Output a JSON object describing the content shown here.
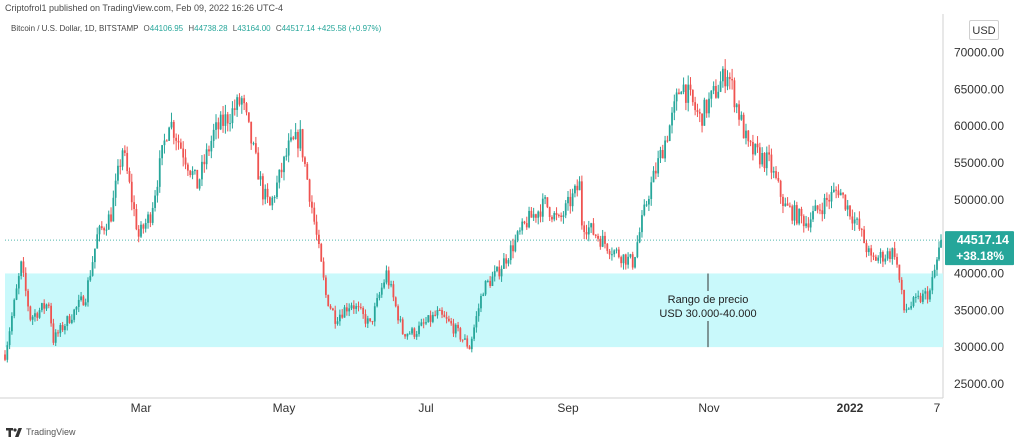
{
  "header": {
    "published_by": "Criptofrol1 published on TradingView.com, Feb 09, 2022 16:26 UTC-4"
  },
  "legend": {
    "symbol": "Bitcoin / U.S. Dollar, 1D, BITSTAMP",
    "open_label": "O",
    "open": "44106.95",
    "high_label": "H",
    "high": "44738.28",
    "low_label": "L",
    "low": "43164.00",
    "close_label": "C",
    "close": "44517.14",
    "change": "+425.58 (+0.97%)"
  },
  "axis": {
    "currency": "USD"
  },
  "annotation": {
    "line1": "Rango de precio",
    "line2": "USD 30.000-40.000"
  },
  "footer": {
    "brand": "TradingView"
  },
  "colors": {
    "up": "#26a69a",
    "down": "#ef5350",
    "zone": "#c9f9fb",
    "last_price_bg": "#26a69a",
    "axis_text": "#333333"
  },
  "chart_data": {
    "type": "candlestick",
    "x_tick_labels": [
      "Mar",
      "May",
      "Jul",
      "Sep",
      "Nov",
      "2022",
      "7"
    ],
    "y_tick_labels": [
      "25000.00",
      "30000.00",
      "35000.00",
      "40000.00",
      "45000.00",
      "50000.00",
      "55000.00",
      "60000.00",
      "65000.00",
      "70000.00"
    ],
    "ylim": [
      23500,
      72500
    ],
    "x_anchor_dates": [
      "2021-01-01",
      "2021-03-01",
      "2021-05-01",
      "2021-07-01",
      "2021-09-01",
      "2021-11-01",
      "2022-01-01",
      "2022-02-07",
      "2022-02-09"
    ],
    "price_range_zone": [
      30000,
      40000
    ],
    "last_price": "44517.14",
    "last_change": "+38.18%",
    "price_path": [
      [
        "2021-01-01",
        29000
      ],
      [
        "2021-01-08",
        41000
      ],
      [
        "2021-01-12",
        34000
      ],
      [
        "2021-01-20",
        36000
      ],
      [
        "2021-01-22",
        31000
      ],
      [
        "2021-01-29",
        34000
      ],
      [
        "2021-02-05",
        37000
      ],
      [
        "2021-02-10",
        45000
      ],
      [
        "2021-02-16",
        48000
      ],
      [
        "2021-02-21",
        57000
      ],
      [
        "2021-02-28",
        45000
      ],
      [
        "2021-03-05",
        48000
      ],
      [
        "2021-03-13",
        61000
      ],
      [
        "2021-03-25",
        52000
      ],
      [
        "2021-04-01",
        59000
      ],
      [
        "2021-04-13",
        63500
      ],
      [
        "2021-04-22",
        51000
      ],
      [
        "2021-04-25",
        49000
      ],
      [
        "2021-05-03",
        57000
      ],
      [
        "2021-05-08",
        58500
      ],
      [
        "2021-05-13",
        49000
      ],
      [
        "2021-05-19",
        37000
      ],
      [
        "2021-05-23",
        34000
      ],
      [
        "2021-05-30",
        36000
      ],
      [
        "2021-06-07",
        33000
      ],
      [
        "2021-06-14",
        40000
      ],
      [
        "2021-06-21",
        32000
      ],
      [
        "2021-06-26",
        32000
      ],
      [
        "2021-07-06",
        34500
      ],
      [
        "2021-07-12",
        33000
      ],
      [
        "2021-07-20",
        30000
      ],
      [
        "2021-07-26",
        38000
      ],
      [
        "2021-08-01",
        40000
      ],
      [
        "2021-08-14",
        47000
      ],
      [
        "2021-08-22",
        49500
      ],
      [
        "2021-08-28",
        47000
      ],
      [
        "2021-09-06",
        52000
      ],
      [
        "2021-09-07",
        47000
      ],
      [
        "2021-09-21",
        43000
      ],
      [
        "2021-09-29",
        41500
      ],
      [
        "2021-10-06",
        51000
      ],
      [
        "2021-10-16",
        61000
      ],
      [
        "2021-10-20",
        66000
      ],
      [
        "2021-10-28",
        61000
      ],
      [
        "2021-11-09",
        67500
      ],
      [
        "2021-11-18",
        57000
      ],
      [
        "2021-11-27",
        55000
      ],
      [
        "2021-12-04",
        49000
      ],
      [
        "2021-12-13",
        47000
      ],
      [
        "2021-12-27",
        51500
      ],
      [
        "2022-01-05",
        46000
      ],
      [
        "2022-01-10",
        41800
      ],
      [
        "2022-01-20",
        43000
      ],
      [
        "2022-01-24",
        35000
      ],
      [
        "2022-02-04",
        37500
      ],
      [
        "2022-02-09",
        44517
      ]
    ]
  }
}
